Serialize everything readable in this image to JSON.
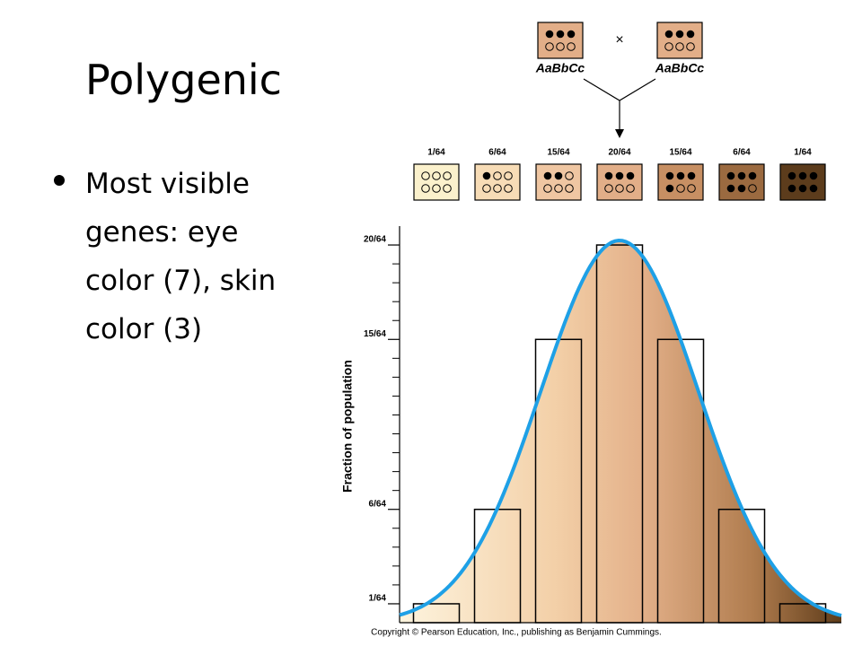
{
  "title": "Polygenic",
  "bullets": [
    "Most visible genes:  eye color (7), skin color (3)"
  ],
  "cross": {
    "parents": [
      "AaBbCc",
      "AaBbCc"
    ],
    "symbol": "×"
  },
  "chart_data": {
    "type": "bar",
    "ylabel": "Fraction of population",
    "values": [
      0.015625,
      0.09375,
      0.234375,
      0.3125,
      0.234375,
      0.09375,
      0.015625
    ],
    "value_labels": [
      "1/64",
      "6/64",
      "15/64",
      "20/64",
      "15/64",
      "6/64",
      "1/64"
    ],
    "ylim": [
      0,
      0.328125
    ],
    "yticks": [
      {
        "value": 0.015625,
        "label": "1/64"
      },
      {
        "value": 0.09375,
        "label": "6/64"
      },
      {
        "value": 0.234375,
        "label": "15/64"
      },
      {
        "value": 0.3125,
        "label": "20/64"
      }
    ],
    "minor_yticks": [
      0.03125,
      0.046875,
      0.0625,
      0.078125,
      0.109375,
      0.125,
      0.140625,
      0.15625,
      0.171875,
      0.1875,
      0.203125,
      0.21875,
      0.25,
      0.265625,
      0.28125,
      0.296875
    ],
    "curve_color": "#1ea0e6",
    "box_colors": [
      "#fbf1cc",
      "#f7dcb6",
      "#efc6a2",
      "#e2ae88",
      "#c78f63",
      "#9b6a40",
      "#5c3c1c"
    ],
    "credit": "Copyright © Pearson Education, Inc., publishing as Benjamin Cummings."
  }
}
